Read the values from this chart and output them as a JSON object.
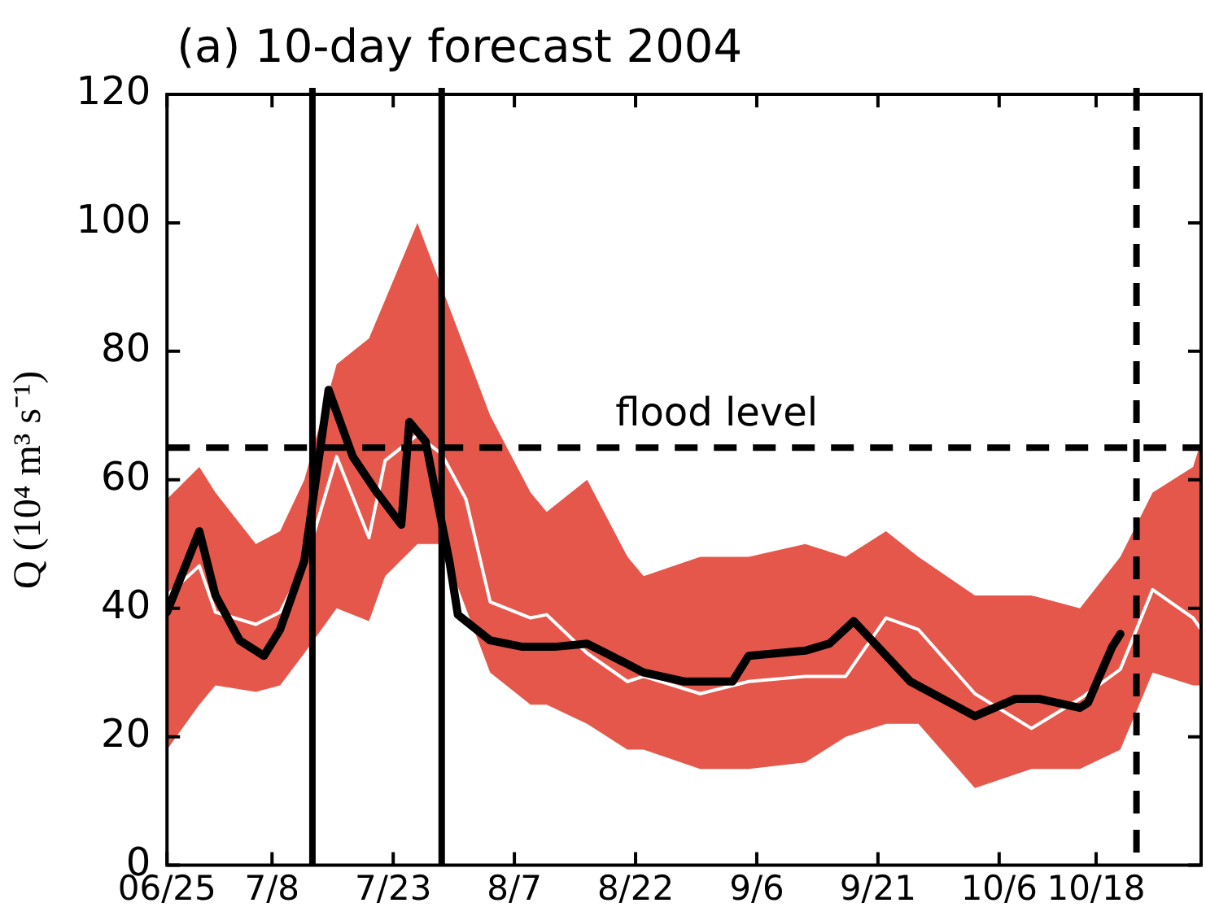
{
  "chart_data": {
    "type": "line",
    "title": "(a) 10-day forecast 2004",
    "ylabel": "Q (10⁴ m³ s⁻¹)",
    "xlim": [
      "--06-25",
      "--10-31"
    ],
    "ylim": [
      0,
      120
    ],
    "xticks": [
      {
        "value": "--06-25",
        "label": "06/25"
      },
      {
        "value": "--07-08",
        "label": "7/8"
      },
      {
        "value": "--07-23",
        "label": "7/23"
      },
      {
        "value": "--08-07",
        "label": "8/7"
      },
      {
        "value": "--08-22",
        "label": "8/22"
      },
      {
        "value": "--09-06",
        "label": "9/6"
      },
      {
        "value": "--09-21",
        "label": "9/21"
      },
      {
        "value": "--10-06",
        "label": "10/6"
      },
      {
        "value": "--10-18",
        "label": "10/18"
      }
    ],
    "yticks": [
      0,
      20,
      40,
      60,
      80,
      100,
      120
    ],
    "grid": false,
    "legend": false,
    "marker": "none",
    "line_style": "solid",
    "ref_lines": [
      {
        "axis": "y",
        "value": 65,
        "label": "flood level",
        "line_style": "dashed",
        "color": "#000000"
      },
      {
        "axis": "x",
        "value": "--07-13",
        "line_style": "solid",
        "color": "#000000"
      },
      {
        "axis": "x",
        "value": "--07-29",
        "line_style": "solid",
        "color": "#000000"
      },
      {
        "axis": "x",
        "value": "--10-23",
        "line_style": "dashed",
        "color": "#000000"
      }
    ],
    "series": [
      {
        "color": "#ffffff",
        "x": [
          "--06-25",
          "--06-29",
          "--07-01",
          "--07-06",
          "--07-09",
          "--07-12",
          "--07-16",
          "--07-20",
          "--07-22",
          "--07-26",
          "--07-29",
          "--08-01",
          "--08-04",
          "--08-09",
          "--08-11",
          "--08-16",
          "--08-21",
          "--08-23",
          "--08-30",
          "--09-05",
          "--09-12",
          "--09-17",
          "--09-22",
          "--09-26",
          "--10-03",
          "--10-10",
          "--10-16",
          "--10-21",
          "--10-25",
          "--10-30",
          "--10-31"
        ],
        "values": [
          42,
          46.6,
          39.4,
          37.5,
          39.4,
          46.6,
          63.6,
          51,
          63,
          67,
          64,
          57,
          41,
          38.5,
          39,
          33,
          28.6,
          29.4,
          26.7,
          28.6,
          29.4,
          29.4,
          38.5,
          36.7,
          26.7,
          21.3,
          25.9,
          30.5,
          42.9,
          38.5,
          36.7
        ],
        "lower": [
          18,
          25,
          28,
          27,
          28,
          33,
          40,
          38,
          45,
          50,
          50,
          40,
          30,
          25,
          25,
          22,
          18,
          18,
          15,
          15,
          16,
          20,
          22,
          22,
          12,
          15,
          15,
          18,
          30,
          28,
          28
        ],
        "upper": [
          57,
          62,
          58,
          50,
          52,
          60,
          78,
          82,
          88,
          100,
          90,
          80,
          70,
          58,
          55,
          60,
          48,
          45,
          48,
          48,
          50,
          48,
          52,
          48,
          42,
          42,
          40,
          48,
          58,
          62,
          66
        ]
      },
      {
        "color": "#000000",
        "x": [
          "--06-25",
          "--06-29",
          "--07-01",
          "--07-04",
          "--07-07",
          "--07-09",
          "--07-12",
          "--07-15",
          "--07-18",
          "--07-21",
          "--07-24",
          "--07-25",
          "--07-27",
          "--07-30",
          "--07-31",
          "--08-04",
          "--08-08",
          "--08-12",
          "--08-16",
          "--08-19",
          "--08-23",
          "--08-28",
          "--09-01",
          "--09-03",
          "--09-05",
          "--09-12",
          "--09-15",
          "--09-18",
          "--09-21",
          "--09-25",
          "--10-03",
          "--10-08",
          "--10-11",
          "--10-16",
          "--10-17",
          "--10-20",
          "--10-21"
        ],
        "values": [
          39.4,
          52,
          42,
          35,
          32.6,
          36.7,
          47.4,
          74,
          63.6,
          58,
          53,
          69,
          66,
          47,
          39,
          35,
          34,
          34,
          34.5,
          32.6,
          30,
          28.6,
          28.6,
          28.6,
          32.6,
          33.4,
          34.5,
          38,
          34,
          28.6,
          23.2,
          25.9,
          25.9,
          24.5,
          25.3,
          34,
          36
        ]
      }
    ]
  }
}
